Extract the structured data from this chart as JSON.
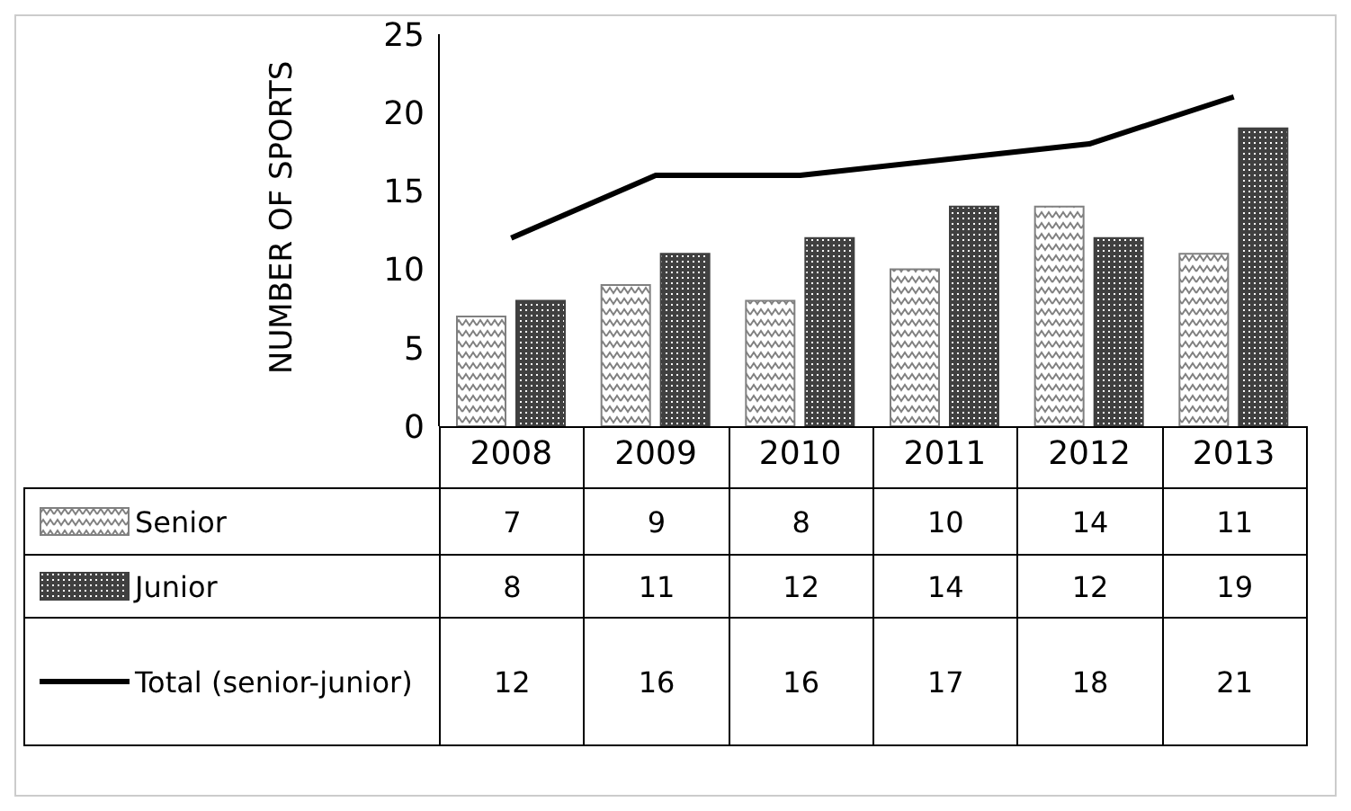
{
  "chart_data": {
    "type": "bar",
    "ylabel": "NUMBER OF SPORTS",
    "categories": [
      "2008",
      "2009",
      "2010",
      "2011",
      "2012",
      "2013"
    ],
    "series": [
      {
        "name": "Senior",
        "color": "#808080",
        "values": [
          7,
          9,
          8,
          10,
          14,
          11
        ]
      },
      {
        "name": "Junior",
        "color": "#404040",
        "values": [
          8,
          11,
          12,
          14,
          12,
          19
        ]
      },
      {
        "name": "Total (senior-junior)",
        "type": "line",
        "color": "#000000",
        "values": [
          12,
          16,
          16,
          17,
          18,
          21
        ]
      }
    ],
    "ylim": [
      0,
      25
    ],
    "yticks": [
      0,
      5,
      10,
      15,
      20,
      25
    ],
    "legend": "bottom",
    "data_labels": true,
    "marker": "none",
    "line_style": "solid"
  }
}
